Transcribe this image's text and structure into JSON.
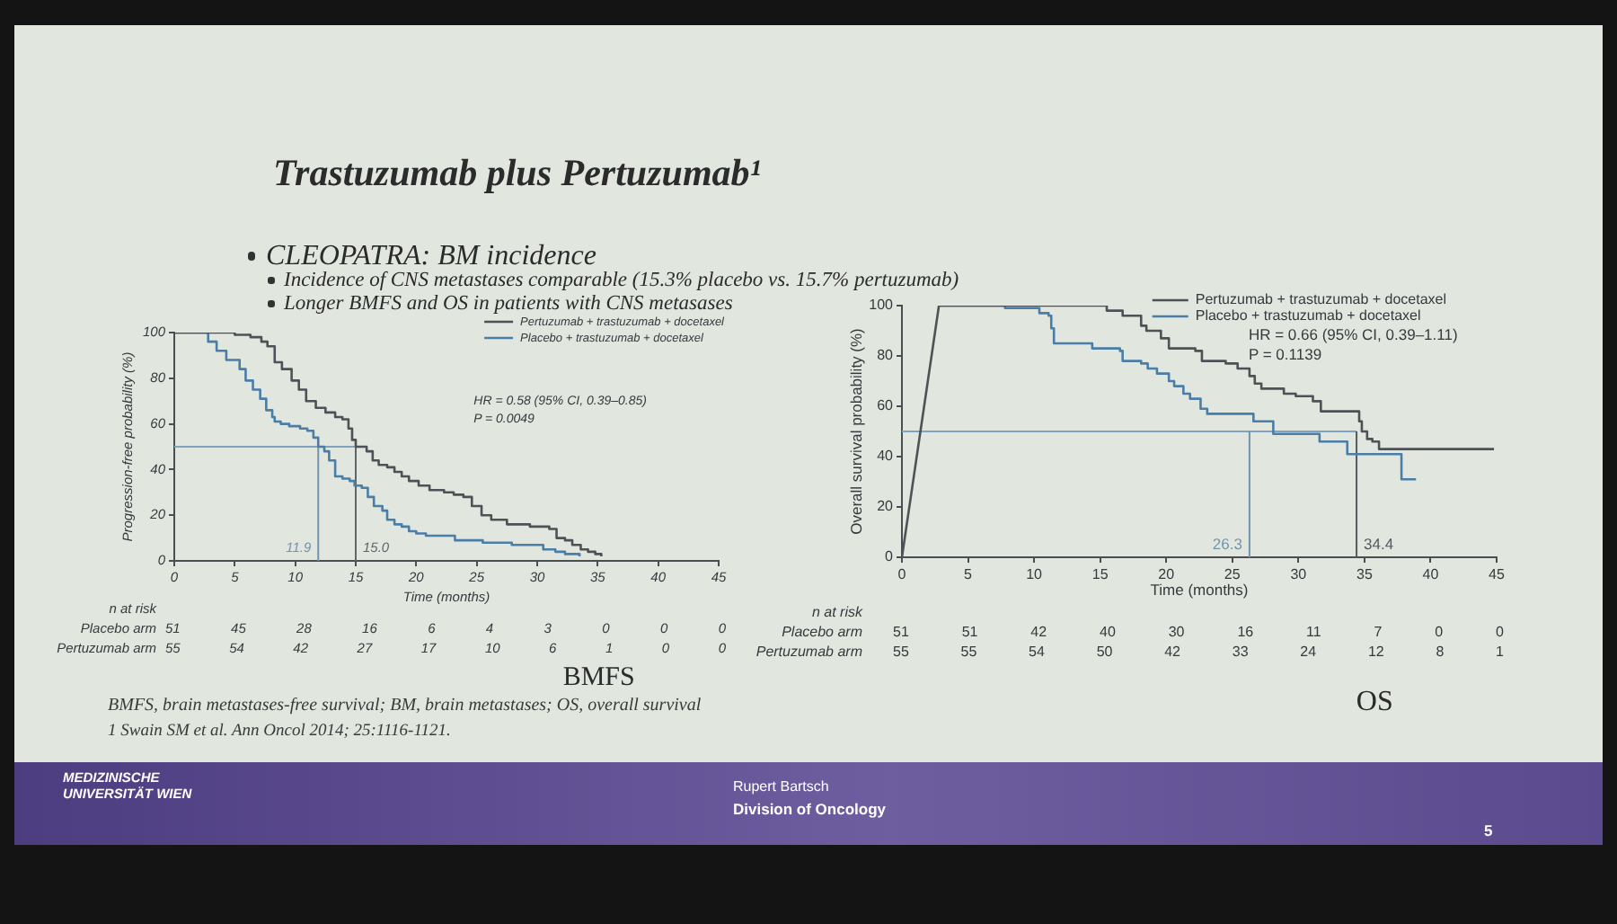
{
  "chart_data": [
    {
      "type": "other",
      "title": "Trastuzumab plus Pertuzumab¹",
      "subtitle": "CLEOPATRA: BM incidence",
      "annotations": [
        "Incidence of CNS metastases comparable (15.3% placebo vs. 15.7% pertuzumab)",
        "Longer BMFS and OS in patients with CNS metasases"
      ]
    },
    {
      "type": "step",
      "title": "BMFS",
      "xlabel": "Time (months)",
      "ylabel": "Progression-free probability (%)",
      "xlim": [
        0,
        45
      ],
      "xticks": [
        0,
        5,
        10,
        15,
        20,
        25,
        30,
        35,
        40,
        45
      ],
      "ylim": [
        0,
        100
      ],
      "yticks": [
        0,
        20,
        40,
        60,
        80,
        100
      ],
      "legend": "top right",
      "series": [
        {
          "name": "Pertuzumab + trastuzumab + docetaxel",
          "color": "#4e5257",
          "x": [
            0,
            5,
            6.3,
            7.2,
            7.7,
            8.3,
            8.9,
            9.7,
            10.3,
            10.9,
            11.7,
            12.5,
            13.3,
            13.9,
            14.4,
            14.7,
            15,
            15.9,
            16.4,
            16.9,
            17.6,
            18.2,
            18.8,
            19.4,
            20.2,
            21.1,
            22.3,
            23.1,
            23.9,
            24.6,
            25.4,
            26.2,
            27.5,
            29.4,
            31,
            31.6,
            32.3,
            32.9,
            33.6,
            34.2,
            34.8,
            35.3
          ],
          "values": [
            100,
            99,
            98,
            96,
            94,
            87,
            84,
            79,
            75,
            70,
            67,
            65,
            63,
            62,
            58,
            53,
            50,
            48,
            44,
            42,
            41,
            39,
            37,
            35,
            33,
            31,
            30,
            29,
            28,
            24,
            20,
            18,
            16,
            15,
            14,
            10,
            9,
            7,
            5,
            4,
            3,
            2
          ]
        },
        {
          "name": "Placebo + trastuzumab + docetaxel",
          "color": "#4a7ea6",
          "x": [
            0,
            2.8,
            3.5,
            4.3,
            5.4,
            5.9,
            6.5,
            7.1,
            7.6,
            8.1,
            8.3,
            8.8,
            9.5,
            10.4,
            11,
            11.5,
            11.9,
            12.4,
            12.8,
            13.3,
            13.9,
            14.5,
            14.9,
            15.5,
            16,
            16.5,
            17.2,
            17.6,
            18.2,
            18.8,
            19.4,
            20,
            20.8,
            23.2,
            25.5,
            27.9,
            30.5,
            31.5,
            32.3,
            33.5
          ],
          "values": [
            100,
            96,
            92,
            88,
            84,
            79,
            75,
            71,
            66,
            63,
            61,
            60,
            59,
            58,
            57,
            54,
            50,
            48,
            44,
            37,
            36,
            35,
            33,
            32,
            28,
            24,
            22,
            18,
            16,
            15,
            13,
            12,
            11,
            9,
            8,
            7,
            5,
            4,
            3,
            2
          ]
        }
      ],
      "ref_lines": [
        {
          "axis": "y",
          "value": 50,
          "color": "#7fa3be"
        },
        {
          "axis": "x",
          "value": 11.9,
          "label": "11.9",
          "color": "#7394ad"
        },
        {
          "axis": "x",
          "value": 15,
          "label": "15.0",
          "color": "#60656a"
        }
      ],
      "annotations": [
        "HR = 0.58 (95% CI, 0.39–0.85)",
        "P = 0.0049",
        "n at risk",
        "Placebo arm",
        "51 45 28 16 6 4 3 0 0 0",
        "Pertuzumab arm",
        "55 54 42 27 17 10 6 1 0 0"
      ]
    },
    {
      "type": "step",
      "title": "OS",
      "xlabel": "Time (months)",
      "ylabel": "Overall survival probability (%)",
      "xlim": [
        0,
        45
      ],
      "xticks": [
        0,
        5,
        10,
        15,
        20,
        25,
        30,
        35,
        40,
        45
      ],
      "ylim": [
        0,
        100
      ],
      "yticks": [
        0,
        20,
        40,
        60,
        80,
        100
      ],
      "legend": "top right",
      "series": [
        {
          "name": "Pertuzumab + trastuzumab + docetaxel",
          "color": "#4e5257",
          "x": [
            2.8,
            15.5,
            16.7,
            18.1,
            18.5,
            19.6,
            20.2,
            22.2,
            22.7,
            24.5,
            25.4,
            26.3,
            26.7,
            27.2,
            28.9,
            29.8,
            31.1,
            31.7,
            34.6,
            34.8,
            35.2,
            35.6,
            36.1,
            44.8
          ],
          "values": [
            100,
            98,
            96,
            92,
            90,
            87,
            83,
            82,
            78,
            77,
            75,
            72,
            69,
            67,
            65,
            64,
            62,
            58,
            54,
            50,
            47,
            46,
            43,
            43
          ]
        },
        {
          "name": "Placebo + trastuzumab + docetaxel",
          "color": "#4a7ea6",
          "x": [
            2.8,
            7.8,
            10.4,
            11.1,
            11.3,
            11.5,
            14.4,
            16.5,
            16.7,
            18.1,
            18.6,
            19.3,
            20.2,
            20.6,
            21.3,
            21.8,
            22.6,
            23.1,
            26.6,
            28.1,
            31.6,
            33.7,
            37.8,
            38.9
          ],
          "values": [
            100,
            99,
            97,
            96,
            91,
            85,
            83,
            82,
            78,
            77,
            75,
            73,
            70,
            68,
            65,
            63,
            59,
            57,
            54,
            49,
            46,
            41,
            31,
            31
          ]
        },
        {
          "type": "line",
          "color": "#4e5257",
          "x": [
            0,
            2.8
          ],
          "values": [
            0,
            100
          ]
        }
      ],
      "ref_lines": [
        {
          "axis": "y",
          "value": 50,
          "color": "#7fa3be"
        },
        {
          "axis": "x",
          "value": 26.3,
          "label": "26.3",
          "color": "#7394ad"
        },
        {
          "axis": "x",
          "value": 34.4,
          "label": "34.4",
          "color": "#55595e"
        }
      ],
      "annotations": [
        "HR = 0.66 (95% CI, 0.39–1.11)",
        "P = 0.1139",
        "n at risk",
        "Placebo arm",
        "51 51 42 40 30 16 11 7 0 0",
        "Pertuzumab arm",
        "55 55 54 50 42 33 24 12 8 1"
      ]
    },
    {
      "type": "other",
      "annotations": [
        "BMFS, brain metastases-free survival; BM, brain metastases; OS, overall survival",
        "1 Swain SM et al. Ann Oncol 2014; 25:1116-1121.",
        "MEDIZINISCHE UNIVERSITÄT WIEN",
        "Rupert Bartsch",
        "Division of Oncology",
        "5"
      ]
    }
  ]
}
